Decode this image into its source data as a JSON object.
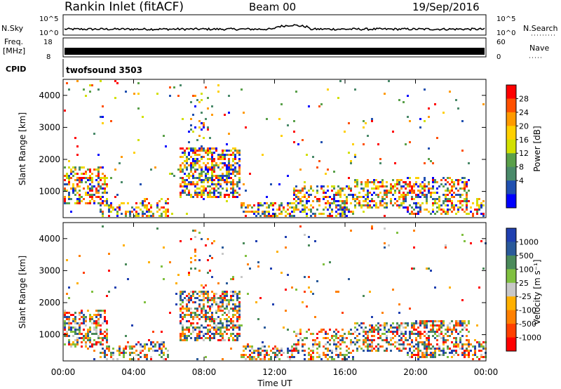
{
  "header": {
    "station": "Rankin Inlet (fitACF)",
    "beam": "Beam 00",
    "date": "19/Sep/2016"
  },
  "strips": {
    "nsky_label": "N.Sky",
    "nsky_ticks": [
      "10^5",
      "10^0"
    ],
    "nsearch_label": "N.Search",
    "nsearch_ticks": [
      "10^5",
      "10^0"
    ],
    "freq_label": "Freq.",
    "freq_unit": "[MHz]",
    "freq_ticks": [
      "18",
      "8"
    ],
    "nave_label": "Nave",
    "nave_ticks": [
      "60",
      "0"
    ],
    "cpid_label": "CPID",
    "cpid_value": "twofsound 3503"
  },
  "chart_data": [
    {
      "type": "heatmap",
      "name": "power",
      "ylabel": "Slant Range [km]",
      "xlabel": "Time UT",
      "x_ticks": [
        "00:00",
        "04:00",
        "08:00",
        "12:00",
        "16:00",
        "20:00",
        "00:00"
      ],
      "y_ticks": [
        "1000",
        "2000",
        "3000",
        "4000"
      ],
      "ylim": [
        180,
        4500
      ],
      "xlim_hours": [
        0,
        24
      ],
      "colorbar_label": "Power [dB]",
      "colorbar_ticks": [
        "28",
        "24",
        "20",
        "16",
        "12",
        "8",
        "4"
      ],
      "colorbar_colors": [
        "#ff0000",
        "#ff5000",
        "#ff9a00",
        "#ffd000",
        "#d2e000",
        "#5aa04a",
        "#4a8a6a",
        "#2050b0",
        "#0000ff"
      ]
    },
    {
      "type": "heatmap",
      "name": "velocity",
      "ylabel": "Slant Range [km]",
      "xlabel": "Time UT",
      "x_ticks": [
        "00:00",
        "04:00",
        "08:00",
        "12:00",
        "16:00",
        "20:00",
        "00:00"
      ],
      "y_ticks": [
        "1000",
        "2000",
        "3000",
        "4000"
      ],
      "ylim": [
        180,
        4500
      ],
      "xlim_hours": [
        0,
        24
      ],
      "colorbar_label": "Velocity [m s⁻¹]",
      "colorbar_ticks": [
        "1000",
        "500",
        "100",
        "25",
        "-25",
        "-100",
        "-500",
        "-1000"
      ],
      "colorbar_colors": [
        "#2040b0",
        "#2a5a9a",
        "#4a8a5a",
        "#80c040",
        "#c8c8c8",
        "#ffb000",
        "#ff8000",
        "#ff4000",
        "#ff0000"
      ]
    }
  ]
}
